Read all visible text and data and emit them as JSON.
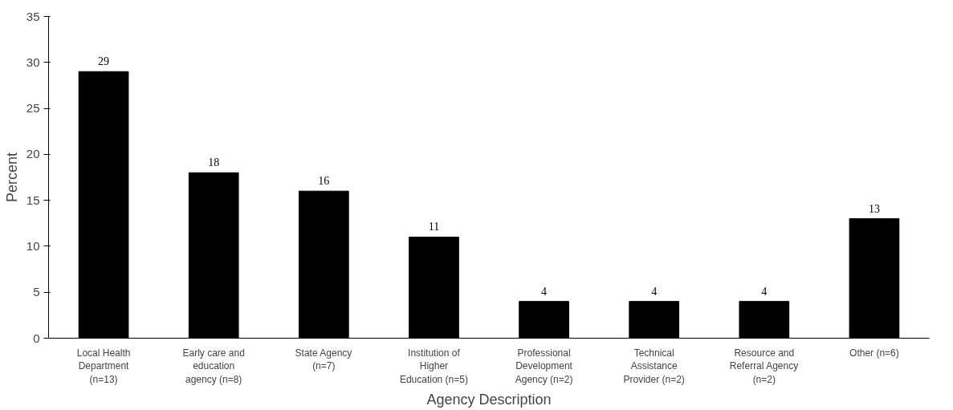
{
  "chart_data": {
    "type": "bar",
    "xlabel": "Agency Description",
    "ylabel": "Percent",
    "categories": [
      "Local Health Department (n=13)",
      "Early care and education agency (n=8)",
      "State Agency (n=7)",
      "Institution of Higher Education (n=5)",
      "Professional Development Agency (n=2)",
      "Technical Assistance Provider (n=2)",
      "Resource and Referral Agency (n=2)",
      "Other (n=6)"
    ],
    "values": [
      29,
      18,
      16,
      11,
      4,
      4,
      4,
      13
    ],
    "color": "#000000",
    "ylim": [
      0,
      35
    ],
    "yticks": [
      0,
      5,
      10,
      15,
      20,
      25,
      30,
      35
    ],
    "grid": false,
    "data_labels": true
  }
}
